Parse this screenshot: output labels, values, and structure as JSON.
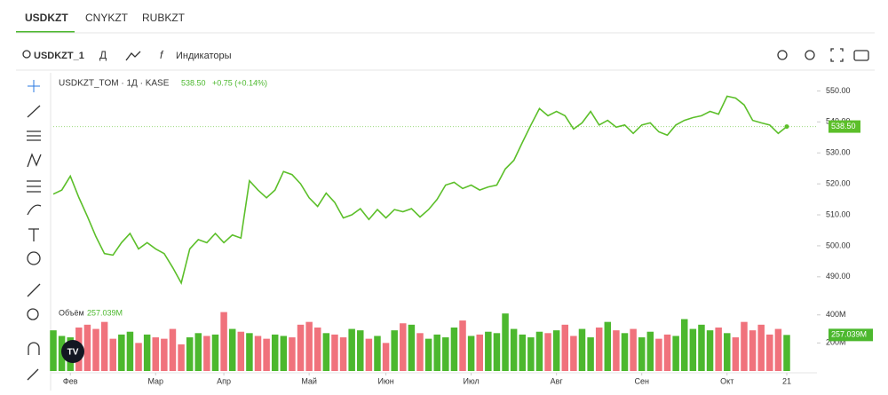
{
  "tabs": [
    "USDKZT",
    "CNYKZT",
    "RUBKZT"
  ],
  "toolbar": {
    "symbol": "USDKZT_1",
    "interval": "Д",
    "indicators": "Индикаторы"
  },
  "chart_data": [
    {
      "type": "line",
      "title": "USDKZT_TOM · 1Д · KASE",
      "last": {
        "value": 538.5,
        "label": "538.50"
      },
      "change": "+0.75 (+0.14%)",
      "color": "#5cbf2a",
      "values": [
        516.7,
        518,
        522.5,
        515.6,
        509.5,
        503,
        497.5,
        497,
        501,
        504,
        499,
        501,
        499,
        497.5,
        493,
        488,
        499,
        502,
        501,
        504,
        501,
        503.5,
        502.5,
        521,
        518,
        515.5,
        518,
        524,
        523,
        520,
        515.5,
        512.7,
        517,
        514,
        509,
        510,
        512,
        508.5,
        511.7,
        509,
        511.7,
        511,
        512,
        509.3,
        511.7,
        515,
        519.6,
        520.5,
        518.5,
        519.6,
        518,
        519,
        519.6,
        524.8,
        527.6,
        533.4,
        539,
        544.3,
        542,
        543.4,
        542,
        537.7,
        539.7,
        543.4,
        539,
        540.5,
        538.3,
        539,
        536.3,
        539,
        539.7,
        536.8,
        535.7,
        539,
        540.5,
        541.4,
        542,
        543.4,
        542.5,
        548.3,
        547.7,
        545.5,
        540.5,
        539.7,
        539,
        536.3,
        538.5
      ],
      "ylim": [
        459,
        555
      ],
      "yticks": [
        {
          "value": 490,
          "label": "490.00"
        },
        {
          "value": 500,
          "label": "500.00"
        },
        {
          "value": 510,
          "label": "510.00"
        },
        {
          "value": 520,
          "label": "520.00"
        },
        {
          "value": 530,
          "label": "530.00"
        },
        {
          "value": 540,
          "label": "540.00"
        },
        {
          "value": 550,
          "label": "550.00"
        }
      ],
      "xlim": [
        0,
        86
      ],
      "xticks": [
        {
          "value": 2,
          "label": "Фев"
        },
        {
          "value": 12,
          "label": "Мар"
        },
        {
          "value": 20,
          "label": "Апр"
        },
        {
          "value": 30,
          "label": "Май"
        },
        {
          "value": 39,
          "label": "Июн"
        },
        {
          "value": 49,
          "label": "Июл"
        },
        {
          "value": 59,
          "label": "Авг"
        },
        {
          "value": 69,
          "label": "Сен"
        },
        {
          "value": 79,
          "label": "Окт"
        },
        {
          "value": 86,
          "label": "21"
        }
      ]
    },
    {
      "type": "bar",
      "title": "Объём",
      "colors": {
        "up": "#4cb82e",
        "down": "#f0727c"
      },
      "values": [
        290,
        250,
        240,
        310,
        330,
        300,
        350,
        230,
        260,
        280,
        200,
        260,
        240,
        230,
        300,
        190,
        240,
        270,
        250,
        260,
        420,
        300,
        280,
        270,
        250,
        230,
        260,
        250,
        240,
        330,
        350,
        310,
        270,
        260,
        240,
        300,
        290,
        230,
        250,
        200,
        290,
        340,
        330,
        270,
        230,
        260,
        240,
        310,
        360,
        250,
        260,
        280,
        270,
        410,
        300,
        260,
        240,
        280,
        270,
        290,
        330,
        250,
        300,
        240,
        310,
        350,
        290,
        270,
        300,
        240,
        280,
        230,
        260,
        250,
        370,
        300,
        330,
        290,
        310,
        270,
        240,
        350,
        290,
        330,
        260,
        300,
        257.039
      ],
      "last_label": "257.039M",
      "ylim": [
        0,
        430
      ],
      "yticks": [
        {
          "value": 200,
          "label": "200M"
        },
        {
          "value": 400,
          "label": "400M"
        }
      ]
    }
  ]
}
